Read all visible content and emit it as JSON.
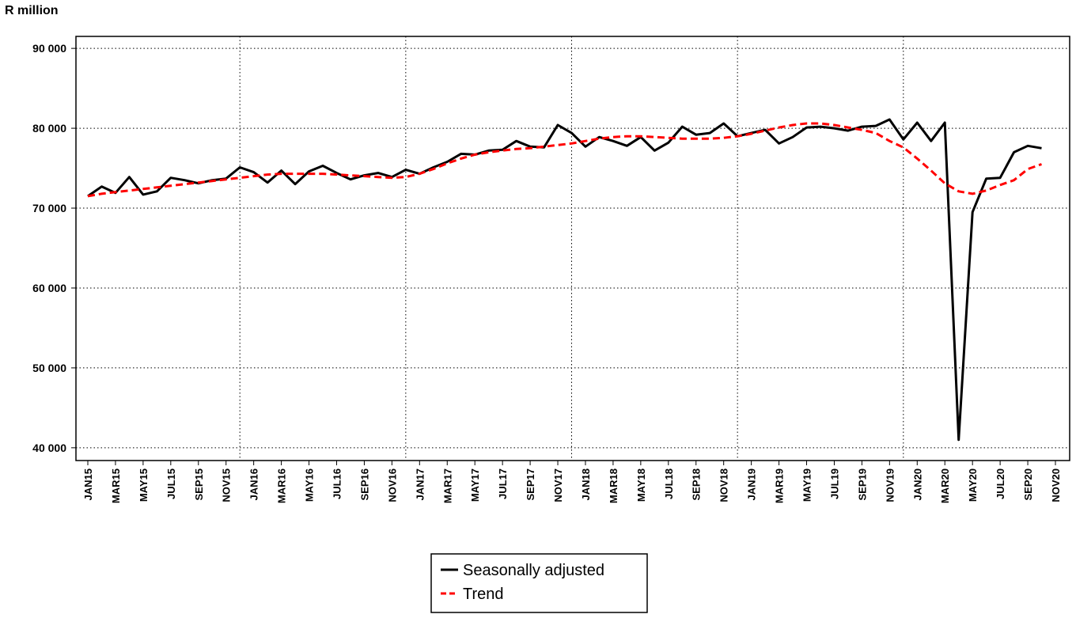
{
  "chart_data": {
    "type": "line",
    "ylabel": "R million",
    "categories": [
      "JAN15",
      null,
      "MAR15",
      null,
      "MAY15",
      null,
      "JUL15",
      null,
      "SEP15",
      null,
      "NOV15",
      null,
      "JAN16",
      null,
      "MAR16",
      null,
      "MAY16",
      null,
      "JUL16",
      null,
      "SEP16",
      null,
      "NOV16",
      null,
      "JAN17",
      null,
      "MAR17",
      null,
      "MAY17",
      null,
      "JUL17",
      null,
      "SEP17",
      null,
      "NOV17",
      null,
      "JAN18",
      null,
      "MAR18",
      null,
      "MAY18",
      null,
      "JUL18",
      null,
      "SEP18",
      null,
      "NOV18",
      null,
      "JAN19",
      null,
      "MAR19",
      null,
      "MAY19",
      null,
      "JUL19",
      null,
      "SEP19",
      null,
      "NOV19",
      null,
      "JAN20",
      null,
      "MAR20",
      null,
      "MAY20",
      null,
      "JUL20",
      null,
      "SEP20",
      null,
      "NOV20"
    ],
    "series": [
      {
        "name": "Seasonally adjusted",
        "color": "#000000",
        "linestyle": "solid",
        "values": [
          71500,
          72700,
          71900,
          73900,
          71700,
          72100,
          73800,
          73500,
          73100,
          73500,
          73700,
          75100,
          74500,
          73200,
          74700,
          73000,
          74600,
          75300,
          74400,
          73600,
          74100,
          74400,
          73900,
          74800,
          74300,
          75100,
          75800,
          76800,
          76700,
          77200,
          77300,
          78400,
          77700,
          77600,
          80400,
          79400,
          77700,
          78900,
          78400,
          77800,
          78900,
          77200,
          78200,
          80200,
          79200,
          79400,
          80600,
          79000,
          79400,
          79800,
          78100,
          78900,
          80100,
          80200,
          80000,
          79700,
          80200,
          80300,
          81100,
          78600,
          80700,
          78400,
          80700,
          41000,
          69500,
          73700,
          73800,
          77000,
          77800,
          77500,
          null
        ]
      },
      {
        "name": "Trend",
        "color": "#ff0000",
        "linestyle": "dashed",
        "values": [
          71500,
          71800,
          72000,
          72200,
          72400,
          72600,
          72800,
          73000,
          73200,
          73400,
          73600,
          73800,
          74000,
          74200,
          74300,
          74300,
          74300,
          74300,
          74200,
          74100,
          74000,
          73900,
          73800,
          73900,
          74300,
          74900,
          75600,
          76200,
          76700,
          77000,
          77200,
          77400,
          77500,
          77700,
          77900,
          78100,
          78400,
          78700,
          78900,
          79000,
          79000,
          78900,
          78800,
          78700,
          78700,
          78700,
          78800,
          79000,
          79300,
          79700,
          80100,
          80400,
          80600,
          80600,
          80400,
          80100,
          79800,
          79400,
          78400,
          77600,
          76200,
          74700,
          73100,
          72100,
          71800,
          72200,
          72900,
          73500,
          74900,
          75500,
          null
        ]
      }
    ],
    "ylim": [
      38400,
      91500
    ],
    "yticks": [
      {
        "value": 40000,
        "label": "40 000"
      },
      {
        "value": 50000,
        "label": "50 000"
      },
      {
        "value": 60000,
        "label": "60 000"
      },
      {
        "value": 70000,
        "label": "70 000"
      },
      {
        "value": 80000,
        "label": "80 000"
      },
      {
        "value": 90000,
        "label": "90 000"
      }
    ],
    "grid": true,
    "legend": "bottom"
  }
}
